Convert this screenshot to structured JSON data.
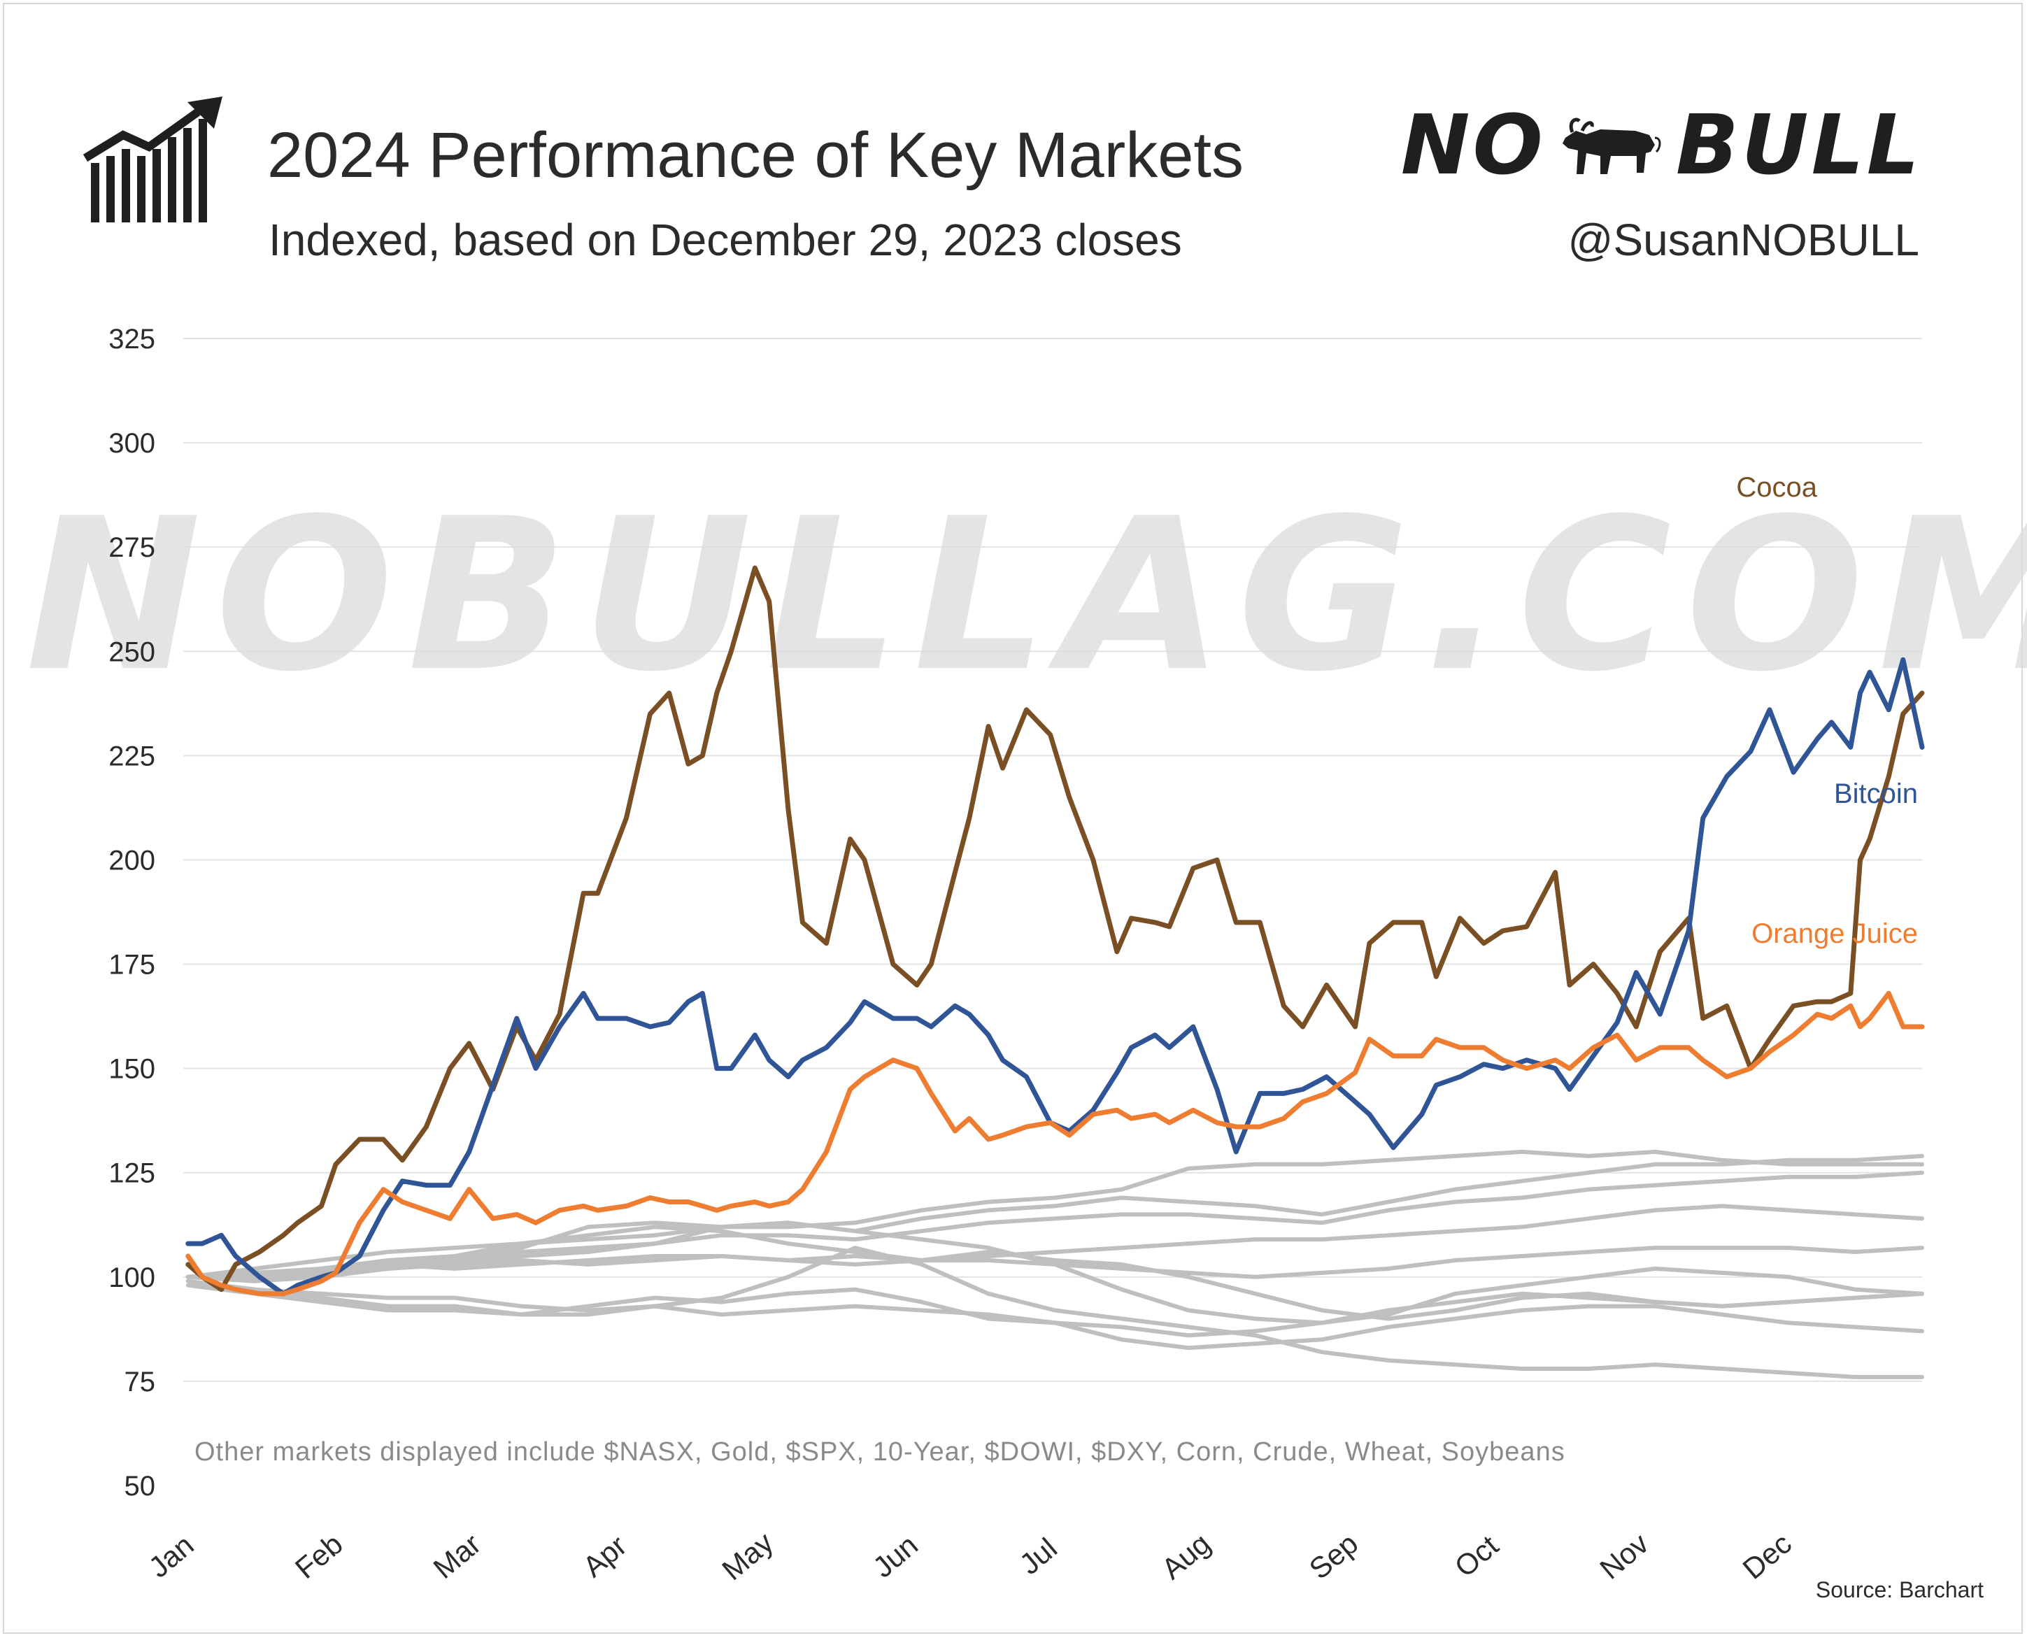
{
  "header": {
    "title": "2024 Performance of Key Markets",
    "subtitle": "Indexed, based on December 29, 2023 closes",
    "logo_left": "NO",
    "logo_right": "BULL",
    "handle": "@SusanNOBULL"
  },
  "watermark": "NOBULLAG.COM",
  "footnote": "Other markets displayed include $NASX, Gold, $SPX, 10-Year, $DOWI, $DXY, Corn, Crude, Wheat, Soybeans",
  "source": "Source: Barchart",
  "colors": {
    "cocoa": "#7b4f24",
    "bitcoin": "#2f5597",
    "orange_juice": "#ee7d31",
    "other": "#bfbfbf",
    "grid": "#e3e3e3"
  },
  "icons": {
    "header_icon": "growth-chart-icon",
    "logo_icon": "bull-icon"
  },
  "chart_data": {
    "type": "line",
    "title": "2024 Performance of Key Markets",
    "subtitle": "Indexed, based on December 29, 2023 closes",
    "xlabel": "",
    "ylabel": "",
    "ylim": [
      50,
      325
    ],
    "yticks": [
      50,
      75,
      100,
      125,
      150,
      175,
      200,
      225,
      250,
      275,
      300,
      325
    ],
    "x_domain": [
      "2024-01-01",
      "2024-12-31"
    ],
    "xtick_labels": [
      "Jan",
      "Feb",
      "Mar",
      "Apr",
      "May",
      "Jun",
      "Jul",
      "Aug",
      "Sep",
      "Oct",
      "Nov",
      "Dec"
    ],
    "xtick_dates": [
      "2024-01-01",
      "2024-02-01",
      "2024-03-01",
      "2024-04-01",
      "2024-05-01",
      "2024-06-01",
      "2024-07-01",
      "2024-08-01",
      "2024-09-01",
      "2024-10-01",
      "2024-11-01",
      "2024-12-01"
    ],
    "grid": true,
    "legend": "direct labels at right",
    "series": [
      {
        "name": "Cocoa",
        "color": "#7b4f24",
        "x": [
          "2024-01-02",
          "2024-01-05",
          "2024-01-09",
          "2024-01-12",
          "2024-01-17",
          "2024-01-22",
          "2024-01-25",
          "2024-01-30",
          "2024-02-02",
          "2024-02-07",
          "2024-02-12",
          "2024-02-16",
          "2024-02-21",
          "2024-02-26",
          "2024-03-01",
          "2024-03-06",
          "2024-03-11",
          "2024-03-15",
          "2024-03-20",
          "2024-03-25",
          "2024-03-28",
          "2024-04-03",
          "2024-04-08",
          "2024-04-12",
          "2024-04-16",
          "2024-04-19",
          "2024-04-22",
          "2024-04-25",
          "2024-04-30",
          "2024-05-03",
          "2024-05-07",
          "2024-05-10",
          "2024-05-15",
          "2024-05-20",
          "2024-05-23",
          "2024-05-29",
          "2024-06-03",
          "2024-06-06",
          "2024-06-11",
          "2024-06-14",
          "2024-06-18",
          "2024-06-21",
          "2024-06-26",
          "2024-07-01",
          "2024-07-05",
          "2024-07-10",
          "2024-07-15",
          "2024-07-18",
          "2024-07-23",
          "2024-07-26",
          "2024-07-31",
          "2024-08-05",
          "2024-08-09",
          "2024-08-14",
          "2024-08-19",
          "2024-08-23",
          "2024-08-28",
          "2024-09-03",
          "2024-09-06",
          "2024-09-11",
          "2024-09-17",
          "2024-09-20",
          "2024-09-25",
          "2024-09-30",
          "2024-10-04",
          "2024-10-09",
          "2024-10-15",
          "2024-10-18",
          "2024-10-23",
          "2024-10-28",
          "2024-11-01",
          "2024-11-06",
          "2024-11-12",
          "2024-11-15",
          "2024-11-20",
          "2024-11-25",
          "2024-11-29",
          "2024-12-04",
          "2024-12-09",
          "2024-12-12",
          "2024-12-16",
          "2024-12-18",
          "2024-12-20",
          "2024-12-24",
          "2024-12-27",
          "2024-12-31"
        ],
        "values": [
          103,
          100,
          97,
          103,
          106,
          110,
          113,
          117,
          127,
          133,
          133,
          128,
          136,
          150,
          156,
          145,
          160,
          152,
          163,
          192,
          192,
          210,
          235,
          240,
          223,
          225,
          240,
          250,
          270,
          262,
          212,
          185,
          180,
          205,
          200,
          175,
          170,
          175,
          197,
          210,
          232,
          222,
          236,
          230,
          215,
          200,
          178,
          186,
          185,
          184,
          198,
          200,
          185,
          185,
          165,
          160,
          170,
          160,
          180,
          185,
          185,
          172,
          186,
          180,
          183,
          184,
          197,
          170,
          175,
          168,
          160,
          178,
          186,
          162,
          165,
          150,
          157,
          165,
          166,
          166,
          168,
          200,
          205,
          220,
          235,
          240
        ],
        "end_label": "Cocoa"
      },
      {
        "name": "Bitcoin",
        "color": "#2f5597",
        "x": [
          "2024-01-02",
          "2024-01-05",
          "2024-01-09",
          "2024-01-12",
          "2024-01-17",
          "2024-01-22",
          "2024-01-25",
          "2024-01-30",
          "2024-02-02",
          "2024-02-07",
          "2024-02-12",
          "2024-02-16",
          "2024-02-21",
          "2024-02-26",
          "2024-03-01",
          "2024-03-06",
          "2024-03-11",
          "2024-03-15",
          "2024-03-20",
          "2024-03-25",
          "2024-03-28",
          "2024-04-03",
          "2024-04-08",
          "2024-04-12",
          "2024-04-16",
          "2024-04-19",
          "2024-04-22",
          "2024-04-25",
          "2024-04-30",
          "2024-05-03",
          "2024-05-07",
          "2024-05-10",
          "2024-05-15",
          "2024-05-20",
          "2024-05-23",
          "2024-05-29",
          "2024-06-03",
          "2024-06-06",
          "2024-06-11",
          "2024-06-14",
          "2024-06-18",
          "2024-06-21",
          "2024-06-26",
          "2024-07-01",
          "2024-07-05",
          "2024-07-10",
          "2024-07-15",
          "2024-07-18",
          "2024-07-23",
          "2024-07-26",
          "2024-07-31",
          "2024-08-05",
          "2024-08-09",
          "2024-08-14",
          "2024-08-19",
          "2024-08-23",
          "2024-08-28",
          "2024-09-03",
          "2024-09-06",
          "2024-09-11",
          "2024-09-17",
          "2024-09-20",
          "2024-09-25",
          "2024-09-30",
          "2024-10-04",
          "2024-10-09",
          "2024-10-15",
          "2024-10-18",
          "2024-10-23",
          "2024-10-28",
          "2024-11-01",
          "2024-11-06",
          "2024-11-12",
          "2024-11-15",
          "2024-11-20",
          "2024-11-25",
          "2024-11-29",
          "2024-12-04",
          "2024-12-09",
          "2024-12-12",
          "2024-12-16",
          "2024-12-18",
          "2024-12-20",
          "2024-12-24",
          "2024-12-27",
          "2024-12-31"
        ],
        "values": [
          108,
          108,
          110,
          105,
          100,
          96,
          98,
          100,
          101,
          105,
          116,
          123,
          122,
          122,
          130,
          146,
          162,
          150,
          160,
          168,
          162,
          162,
          160,
          161,
          166,
          168,
          150,
          150,
          158,
          152,
          148,
          152,
          155,
          161,
          166,
          162,
          162,
          160,
          165,
          163,
          158,
          152,
          148,
          137,
          135,
          140,
          149,
          155,
          158,
          155,
          160,
          145,
          130,
          144,
          144,
          145,
          148,
          142,
          139,
          131,
          139,
          146,
          148,
          151,
          150,
          152,
          150,
          145,
          153,
          161,
          173,
          163,
          183,
          210,
          220,
          226,
          236,
          221,
          229,
          233,
          227,
          240,
          245,
          236,
          248,
          227
        ],
        "end_label": "Bitcoin"
      },
      {
        "name": "Orange Juice",
        "color": "#ee7d31",
        "x": [
          "2024-01-02",
          "2024-01-05",
          "2024-01-09",
          "2024-01-12",
          "2024-01-17",
          "2024-01-22",
          "2024-01-25",
          "2024-01-30",
          "2024-02-02",
          "2024-02-07",
          "2024-02-12",
          "2024-02-16",
          "2024-02-21",
          "2024-02-26",
          "2024-03-01",
          "2024-03-06",
          "2024-03-11",
          "2024-03-15",
          "2024-03-20",
          "2024-03-25",
          "2024-03-28",
          "2024-04-03",
          "2024-04-08",
          "2024-04-12",
          "2024-04-16",
          "2024-04-19",
          "2024-04-22",
          "2024-04-25",
          "2024-04-30",
          "2024-05-03",
          "2024-05-07",
          "2024-05-10",
          "2024-05-15",
          "2024-05-20",
          "2024-05-23",
          "2024-05-29",
          "2024-06-03",
          "2024-06-06",
          "2024-06-11",
          "2024-06-14",
          "2024-06-18",
          "2024-06-21",
          "2024-06-26",
          "2024-07-01",
          "2024-07-05",
          "2024-07-10",
          "2024-07-15",
          "2024-07-18",
          "2024-07-23",
          "2024-07-26",
          "2024-07-31",
          "2024-08-05",
          "2024-08-09",
          "2024-08-14",
          "2024-08-19",
          "2024-08-23",
          "2024-08-28",
          "2024-09-03",
          "2024-09-06",
          "2024-09-11",
          "2024-09-17",
          "2024-09-20",
          "2024-09-25",
          "2024-09-30",
          "2024-10-04",
          "2024-10-09",
          "2024-10-15",
          "2024-10-18",
          "2024-10-23",
          "2024-10-28",
          "2024-11-01",
          "2024-11-06",
          "2024-11-12",
          "2024-11-15",
          "2024-11-20",
          "2024-11-25",
          "2024-11-29",
          "2024-12-04",
          "2024-12-09",
          "2024-12-12",
          "2024-12-16",
          "2024-12-18",
          "2024-12-20",
          "2024-12-24",
          "2024-12-27",
          "2024-12-31"
        ],
        "values": [
          105,
          100,
          98,
          97,
          96,
          96,
          97,
          99,
          101,
          113,
          121,
          118,
          116,
          114,
          121,
          114,
          115,
          113,
          116,
          117,
          116,
          117,
          119,
          118,
          118,
          117,
          116,
          117,
          118,
          117,
          118,
          121,
          130,
          145,
          148,
          152,
          150,
          144,
          135,
          138,
          133,
          134,
          136,
          137,
          134,
          139,
          140,
          138,
          139,
          137,
          140,
          137,
          136,
          136,
          138,
          142,
          144,
          149,
          157,
          153,
          153,
          157,
          155,
          155,
          152,
          150,
          152,
          150,
          155,
          158,
          152,
          155,
          155,
          152,
          148,
          150,
          154,
          158,
          163,
          162,
          165,
          160,
          162,
          168,
          160,
          160
        ],
        "end_label": "Orange Juice"
      },
      {
        "name": "$NASX",
        "color": "#bfbfbf",
        "x_start": "2024-01-02",
        "x_end": "2024-12-31",
        "values": [
          100,
          99,
          101,
          104,
          105,
          108,
          109,
          110,
          112,
          113,
          111,
          114,
          116,
          117,
          119,
          118,
          117,
          115,
          118,
          121,
          123,
          125,
          127,
          127,
          128,
          128,
          129
        ]
      },
      {
        "name": "Gold",
        "color": "#bfbfbf",
        "x_start": "2024-01-02",
        "x_end": "2024-12-31",
        "values": [
          100,
          101,
          101,
          103,
          104,
          107,
          112,
          113,
          112,
          112,
          113,
          116,
          118,
          119,
          121,
          126,
          127,
          127,
          128,
          129,
          130,
          129,
          130,
          128,
          127,
          127,
          127
        ]
      },
      {
        "name": "$SPX",
        "color": "#bfbfbf",
        "x_start": "2024-01-02",
        "x_end": "2024-12-31",
        "values": [
          100,
          99,
          100,
          102,
          103,
          105,
          106,
          108,
          110,
          110,
          109,
          111,
          113,
          114,
          115,
          115,
          114,
          113,
          116,
          118,
          119,
          121,
          122,
          123,
          124,
          124,
          125
        ]
      },
      {
        "name": "10-Year",
        "color": "#bfbfbf",
        "x_start": "2024-01-02",
        "x_end": "2024-12-31",
        "values": [
          100,
          100,
          102,
          104,
          103,
          106,
          107,
          108,
          112,
          113,
          111,
          109,
          107,
          103,
          97,
          92,
          90,
          89,
          91,
          96,
          98,
          100,
          102,
          101,
          100,
          97,
          96
        ]
      },
      {
        "name": "$DOWI",
        "color": "#bfbfbf",
        "x_start": "2024-01-02",
        "x_end": "2024-12-31",
        "values": [
          100,
          100,
          101,
          102,
          103,
          104,
          103,
          104,
          105,
          104,
          103,
          104,
          105,
          106,
          107,
          108,
          109,
          109,
          110,
          111,
          112,
          114,
          116,
          117,
          116,
          115,
          114
        ]
      },
      {
        "name": "$DXY",
        "color": "#bfbfbf",
        "x_start": "2024-01-02",
        "x_end": "2024-12-31",
        "values": [
          100,
          101,
          102,
          103,
          102,
          103,
          104,
          105,
          105,
          104,
          105,
          104,
          104,
          103,
          102,
          101,
          100,
          101,
          102,
          104,
          105,
          106,
          107,
          107,
          107,
          106,
          107
        ]
      },
      {
        "name": "Corn",
        "color": "#bfbfbf",
        "x_start": "2024-01-02",
        "x_end": "2024-12-31",
        "values": [
          98,
          96,
          94,
          92,
          92,
          91,
          93,
          95,
          94,
          96,
          97,
          94,
          90,
          89,
          85,
          83,
          84,
          85,
          88,
          90,
          92,
          93,
          93,
          91,
          89,
          88,
          87
        ]
      },
      {
        "name": "Crude",
        "color": "#bfbfbf",
        "x_start": "2024-01-02",
        "x_end": "2024-12-31",
        "values": [
          100,
          102,
          104,
          106,
          107,
          108,
          110,
          112,
          111,
          108,
          106,
          104,
          106,
          104,
          103,
          100,
          96,
          92,
          90,
          92,
          95,
          96,
          94,
          93,
          94,
          95,
          96
        ]
      },
      {
        "name": "Wheat",
        "color": "#bfbfbf",
        "x_start": "2024-01-02",
        "x_end": "2024-12-31",
        "values": [
          99,
          97,
          95,
          93,
          93,
          91,
          91,
          93,
          95,
          100,
          107,
          103,
          96,
          92,
          90,
          88,
          86,
          82,
          80,
          79,
          78,
          78,
          79,
          78,
          77,
          76,
          76
        ]
      },
      {
        "name": "Soybeans",
        "color": "#bfbfbf",
        "x_start": "2024-01-02",
        "x_end": "2024-12-31",
        "values": [
          99,
          97,
          96,
          95,
          95,
          93,
          92,
          93,
          91,
          92,
          93,
          92,
          91,
          89,
          88,
          86,
          87,
          89,
          92,
          94,
          96,
          95,
          94,
          93,
          94,
          95,
          96
        ]
      }
    ],
    "annotations": [
      "Other markets displayed include $NASX, Gold, $SPX, 10-Year, $DOWI, $DXY, Corn, Crude, Wheat, Soybeans"
    ]
  }
}
